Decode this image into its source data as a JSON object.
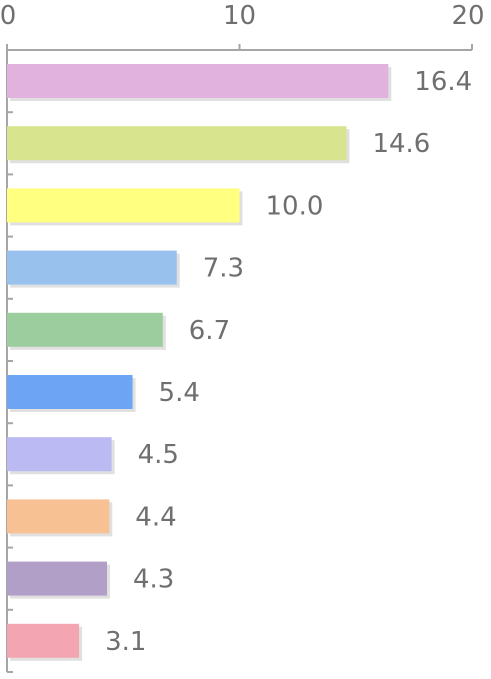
{
  "chart_data": {
    "type": "bar",
    "orientation": "horizontal",
    "title": "",
    "xlabel": "",
    "ylabel": "",
    "xlim": [
      0,
      20
    ],
    "x_ticks": [
      0,
      10,
      20
    ],
    "x_tick_labels": [
      "0",
      "10",
      "20"
    ],
    "x_axis_position": "top",
    "grid": false,
    "legend": "none",
    "values": [
      16.4,
      14.6,
      10.0,
      7.3,
      6.7,
      5.4,
      4.5,
      4.4,
      4.3,
      3.1
    ],
    "data_labels": [
      "16.4",
      "14.6",
      "10.0",
      "7.3",
      "6.7",
      "5.4",
      "4.5",
      "4.4",
      "4.3",
      "3.1"
    ],
    "colors": [
      "#e2b2de",
      "#d9e58e",
      "#ffff80",
      "#99c1ee",
      "#9ccd9f",
      "#6ea4f4",
      "#bcbaf2",
      "#f7c194",
      "#b29fc8",
      "#f3a6b2"
    ]
  },
  "style": {
    "axis_color": "#a6a6a6",
    "label_color": "#6f6f6f",
    "shadow_color": "#d8d8d8"
  }
}
